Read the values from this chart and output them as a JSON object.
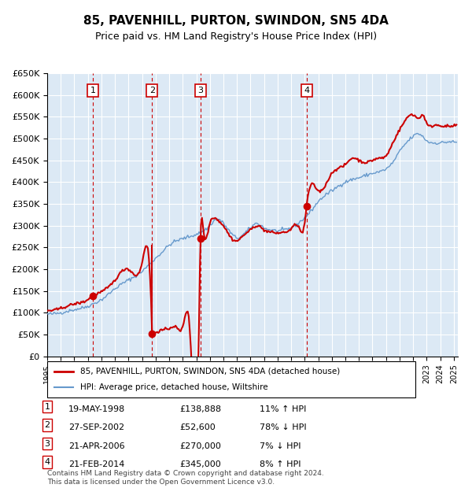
{
  "title": "85, PAVENHILL, PURTON, SWINDON, SN5 4DA",
  "subtitle": "Price paid vs. HM Land Registry's House Price Index (HPI)",
  "ylabel": "",
  "ylim": [
    0,
    650000
  ],
  "yticks": [
    0,
    50000,
    100000,
    150000,
    200000,
    250000,
    300000,
    350000,
    400000,
    450000,
    500000,
    550000,
    600000,
    650000
  ],
  "ytick_labels": [
    "£0",
    "£50K",
    "£100K",
    "£150K",
    "£200K",
    "£250K",
    "£300K",
    "£350K",
    "£400K",
    "£450K",
    "£500K",
    "£550K",
    "£600K",
    "£650K"
  ],
  "background_color": "#dce9f5",
  "grid_color": "#ffffff",
  "transaction_color": "#cc0000",
  "hpi_color": "#6699cc",
  "sale_dates_year": [
    1998.38,
    2002.74,
    2006.31,
    2014.14
  ],
  "sale_prices": [
    138888,
    52600,
    270000,
    345000
  ],
  "transaction_labels": [
    "1",
    "2",
    "3",
    "4"
  ],
  "legend_label_red": "85, PAVENHILL, PURTON, SWINDON, SN5 4DA (detached house)",
  "legend_label_blue": "HPI: Average price, detached house, Wiltshire",
  "table_rows": [
    [
      "1",
      "19-MAY-1998",
      "£138,888",
      "11% ↑ HPI"
    ],
    [
      "2",
      "27-SEP-2002",
      "£52,600",
      "78% ↓ HPI"
    ],
    [
      "3",
      "21-APR-2006",
      "£270,000",
      "7% ↓ HPI"
    ],
    [
      "4",
      "21-FEB-2014",
      "£345,000",
      "8% ↑ HPI"
    ]
  ],
  "footnote": "Contains HM Land Registry data © Crown copyright and database right 2024.\nThis data is licensed under the Open Government Licence v3.0.",
  "xlim_start": 1995.0,
  "xlim_end": 2025.3
}
